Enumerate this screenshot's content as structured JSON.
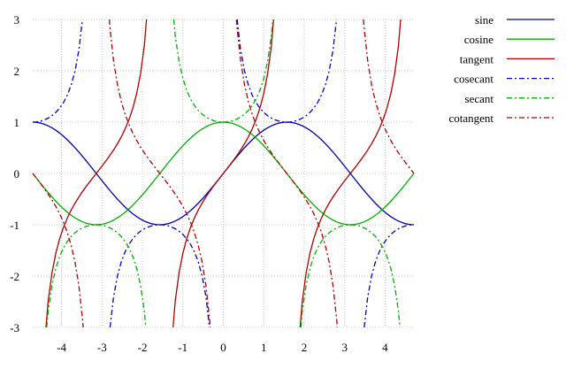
{
  "chart_data": {
    "type": "line",
    "title": "",
    "xlabel": "",
    "ylabel": "",
    "xlim": [
      -4.712,
      4.712
    ],
    "ylim": [
      -3,
      3
    ],
    "x_ticks": [
      -4,
      -3,
      -2,
      -1,
      0,
      1,
      2,
      3,
      4
    ],
    "y_ticks": [
      -3,
      -2,
      -1,
      0,
      1,
      2,
      3
    ],
    "grid": true,
    "legend_position": "right",
    "samples": 100,
    "series": [
      {
        "name": "sine",
        "function": "sin",
        "color": "#0000a8",
        "style": "solid"
      },
      {
        "name": "cosine",
        "function": "cos",
        "color": "#00b000",
        "style": "solid"
      },
      {
        "name": "tangent",
        "function": "tan",
        "color": "#b00000",
        "style": "solid"
      },
      {
        "name": "cosecant",
        "function": "csc",
        "color": "#0000c8",
        "style": "dash-dot"
      },
      {
        "name": "secant",
        "function": "sec",
        "color": "#00b000",
        "style": "dash-dot"
      },
      {
        "name": "cotangent",
        "function": "cot",
        "color": "#b00000",
        "style": "dash-dot"
      }
    ]
  }
}
